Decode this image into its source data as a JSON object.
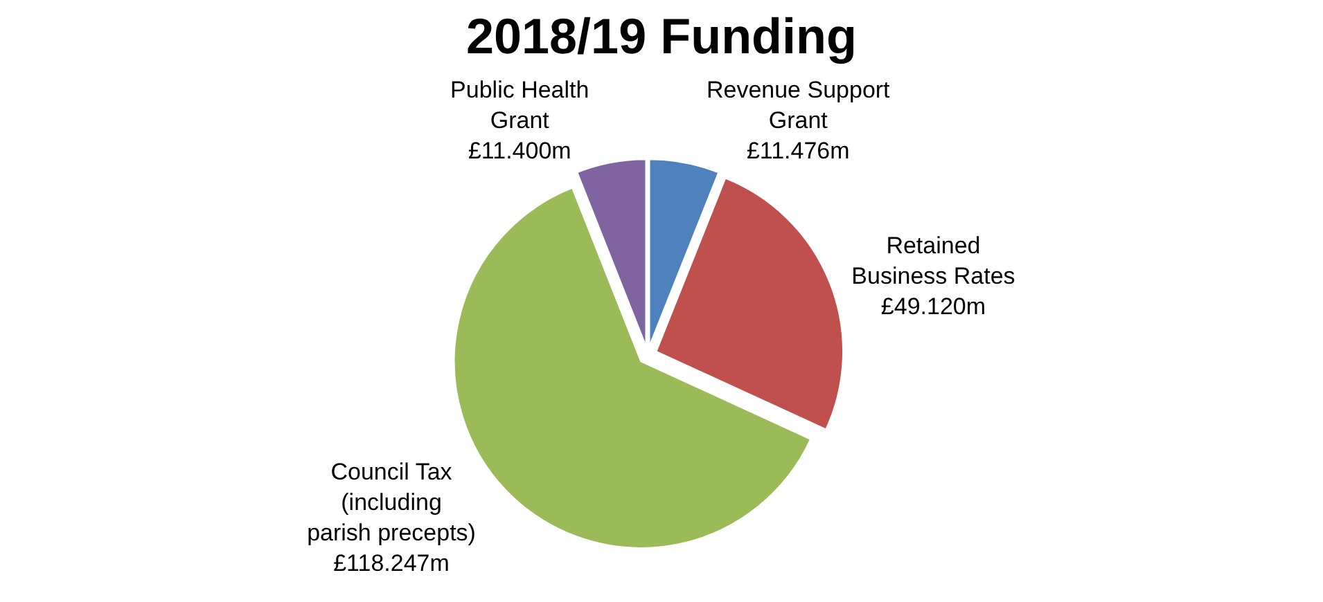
{
  "chart_data": {
    "type": "pie",
    "title": "2018/19 Funding",
    "categories": [
      "Revenue Support Grant",
      "Retained Business Rates",
      "Council Tax (including parish precepts)",
      "Public Health Grant"
    ],
    "values": [
      11.476,
      49.12,
      118.247,
      11.4
    ],
    "value_labels": [
      "£11.476m",
      "£49.120m",
      "£118.247m",
      "£11.400m"
    ],
    "colors": [
      "#4f81bd",
      "#c0504d",
      "#9bbb59",
      "#8064a2"
    ],
    "legend": false
  }
}
